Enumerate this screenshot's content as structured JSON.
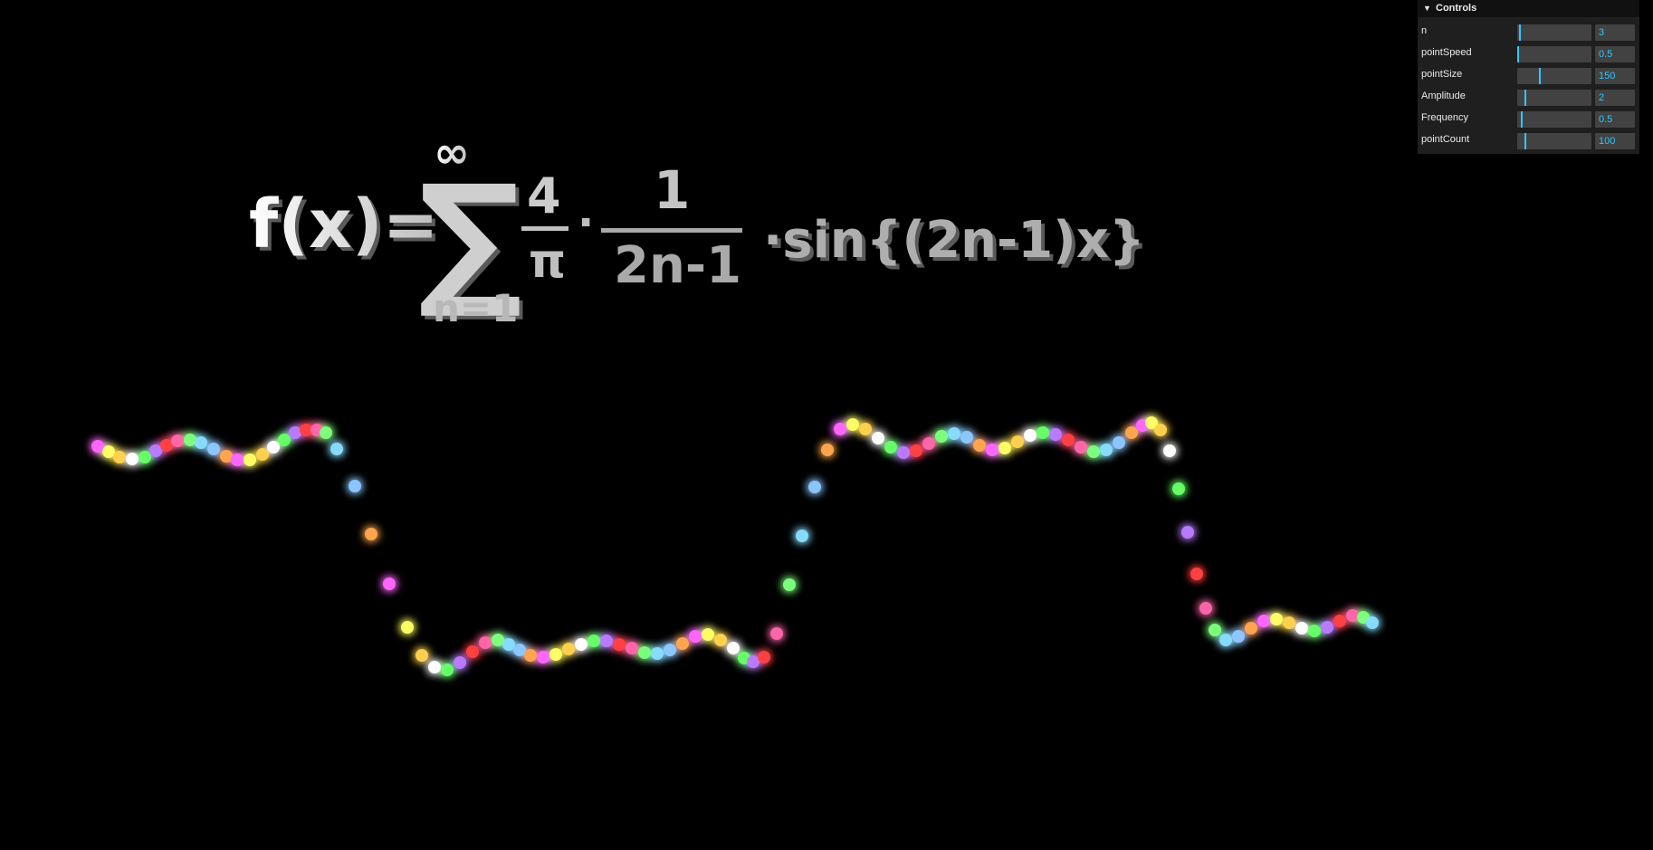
{
  "equation": {
    "lhs": "f(x)=",
    "sum_symbol": "∑",
    "upper_limit": "∞",
    "lower_limit": "n=1",
    "frac1_num": "4",
    "frac1_den": "π",
    "dot": "·",
    "frac2_num": "1",
    "frac2_den": "2n-1",
    "tail": "·sin{(2n-1)x}"
  },
  "controls": {
    "title": "Controls",
    "items": [
      {
        "label": "n",
        "value": "3",
        "level": 0.02
      },
      {
        "label": "pointSpeed",
        "value": "0.5",
        "level": 0.005
      },
      {
        "label": "pointSize",
        "value": "150",
        "level": 0.3
      },
      {
        "label": "Amplitude",
        "value": "2",
        "level": 0.1
      },
      {
        "label": "Frequency",
        "value": "0.5",
        "level": 0.05
      },
      {
        "label": "pointCount",
        "value": "100",
        "level": 0.1
      }
    ]
  },
  "visual": {
    "background": "#000000",
    "accent": "#2cc9ff",
    "equation_color": "#dcdcdc",
    "point_colors": [
      "#ff66ff",
      "#b97bff",
      "#8cc8ff",
      "#ffffff",
      "#7dff7d",
      "#ffff66",
      "#ff4040",
      "#ffa64d",
      "#66ff66",
      "#88ddff",
      "#ffd24d",
      "#ff66aa"
    ]
  }
}
